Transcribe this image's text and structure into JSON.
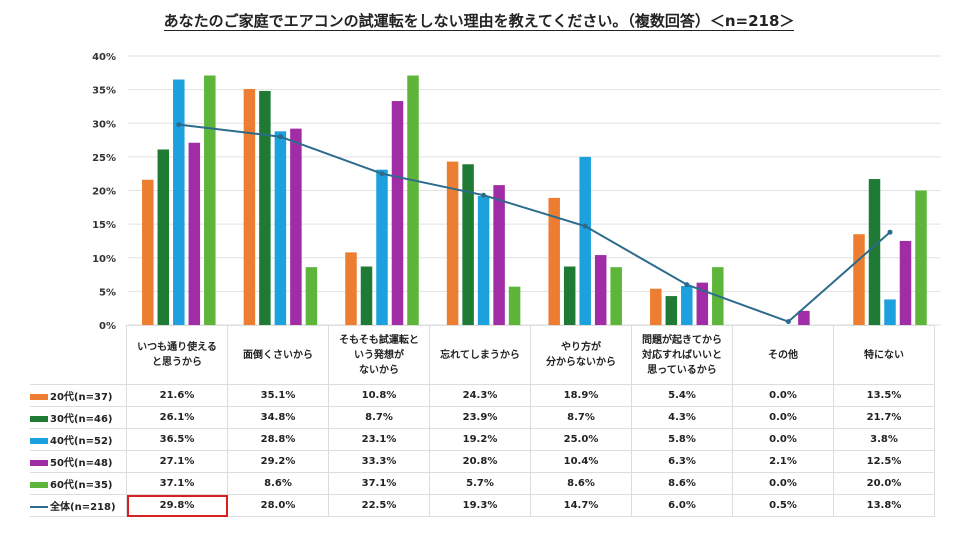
{
  "chart_data": {
    "type": "bar",
    "title": "あなたのご家庭でエアコンの試運転をしない理由を教えてください。（複数回答）＜n=218＞",
    "categories": [
      "いつも通り使える\nと思うから",
      "面倒くさいから",
      "そもそも試運転と\nいう発想が\nないから",
      "忘れてしまうから",
      "やり方が\n分からないから",
      "問題が起きてから\n対応すればいいと\n思っているから",
      "その他",
      "特にない"
    ],
    "ylim": [
      0,
      40
    ],
    "yticks": [
      "0%",
      "5%",
      "10%",
      "15%",
      "20%",
      "25%",
      "30%",
      "35%",
      "40%"
    ],
    "grid": true,
    "series": [
      {
        "name": "20代(n=37)",
        "type": "bar",
        "color": "#ED7D31",
        "values": [
          21.6,
          35.1,
          10.8,
          24.3,
          18.9,
          5.4,
          0.0,
          13.5
        ],
        "labels": [
          "21.6%",
          "35.1%",
          "10.8%",
          "24.3%",
          "18.9%",
          "5.4%",
          "0.0%",
          "13.5%"
        ]
      },
      {
        "name": "30代(n=46)",
        "type": "bar",
        "color": "#1E7A34",
        "values": [
          26.1,
          34.8,
          8.7,
          23.9,
          8.7,
          4.3,
          0.0,
          21.7
        ],
        "labels": [
          "26.1%",
          "34.8%",
          "8.7%",
          "23.9%",
          "8.7%",
          "4.3%",
          "0.0%",
          "21.7%"
        ]
      },
      {
        "name": "40代(n=52)",
        "type": "bar",
        "color": "#1DA1DE",
        "values": [
          36.5,
          28.8,
          23.1,
          19.2,
          25.0,
          5.8,
          0.0,
          3.8
        ],
        "labels": [
          "36.5%",
          "28.8%",
          "23.1%",
          "19.2%",
          "25.0%",
          "5.8%",
          "0.0%",
          "3.8%"
        ]
      },
      {
        "name": "50代(n=48)",
        "type": "bar",
        "color": "#A02DA6",
        "values": [
          27.1,
          29.2,
          33.3,
          20.8,
          10.4,
          6.3,
          2.1,
          12.5
        ],
        "labels": [
          "27.1%",
          "29.2%",
          "33.3%",
          "20.8%",
          "10.4%",
          "6.3%",
          "2.1%",
          "12.5%"
        ]
      },
      {
        "name": "60代(n=35)",
        "type": "bar",
        "color": "#5DB53A",
        "values": [
          37.1,
          8.6,
          37.1,
          5.7,
          8.6,
          8.6,
          0.0,
          20.0
        ],
        "labels": [
          "37.1%",
          "8.6%",
          "37.1%",
          "5.7%",
          "8.6%",
          "8.6%",
          "0.0%",
          "20.0%"
        ]
      },
      {
        "name": "全体(n=218)",
        "type": "line",
        "color": "#2C6B8C",
        "values": [
          29.8,
          28.0,
          22.5,
          19.3,
          14.7,
          6.0,
          0.5,
          13.8
        ],
        "labels": [
          "29.8%",
          "28.0%",
          "22.5%",
          "19.3%",
          "14.7%",
          "6.0%",
          "0.5%",
          "13.8%"
        ]
      }
    ],
    "legend": "data-table-left",
    "highlight": {
      "series": 5,
      "category": 0,
      "color": "#D62020"
    }
  }
}
